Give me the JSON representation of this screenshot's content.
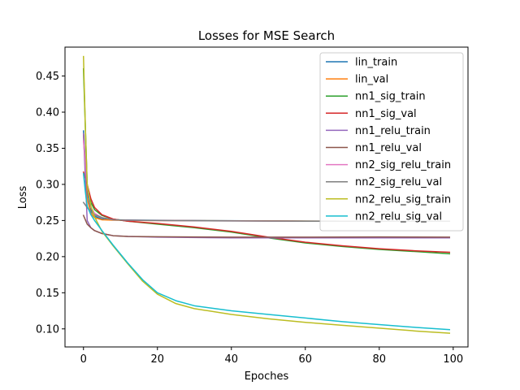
{
  "chart_data": {
    "type": "line",
    "title": "Losses for MSE Search",
    "xlabel": "Epoches",
    "ylabel": "Loss",
    "xlim": [
      -5,
      104
    ],
    "ylim": [
      0.075,
      0.49
    ],
    "xticks": [
      0,
      20,
      40,
      60,
      80,
      100
    ],
    "yticks": [
      0.1,
      0.15,
      0.2,
      0.25,
      0.3,
      0.35,
      0.4,
      0.45
    ],
    "ytick_labels": [
      "0.10",
      "0.15",
      "0.20",
      "0.25",
      "0.30",
      "0.35",
      "0.40",
      "0.45"
    ],
    "grid": false,
    "legend_position": "upper right",
    "series": [
      {
        "name": "lin_train",
        "color": "#1f77b4",
        "x": [
          0,
          0.5,
          1,
          2,
          3,
          5,
          8,
          15,
          30,
          50,
          70,
          99
        ],
        "y": [
          0.374,
          0.33,
          0.29,
          0.265,
          0.256,
          0.252,
          0.251,
          0.2505,
          0.25,
          0.2495,
          0.249,
          0.249
        ]
      },
      {
        "name": "lin_val",
        "color": "#ff7f0e",
        "x": [
          0,
          0.5,
          1,
          2,
          3,
          5,
          8,
          15,
          30,
          50,
          70,
          99
        ],
        "y": [
          0.37,
          0.32,
          0.28,
          0.26,
          0.254,
          0.251,
          0.2505,
          0.25,
          0.2498,
          0.2495,
          0.249,
          0.249
        ]
      },
      {
        "name": "nn1_sig_train",
        "color": "#2ca02c",
        "x": [
          0,
          1,
          2,
          3,
          5,
          8,
          12,
          20,
          30,
          40,
          50,
          60,
          70,
          80,
          90,
          99
        ],
        "y": [
          0.46,
          0.3,
          0.275,
          0.265,
          0.257,
          0.252,
          0.249,
          0.245,
          0.24,
          0.234,
          0.226,
          0.219,
          0.214,
          0.21,
          0.207,
          0.204
        ]
      },
      {
        "name": "nn1_sig_val",
        "color": "#d62728",
        "x": [
          0,
          1,
          2,
          3,
          5,
          8,
          12,
          20,
          30,
          40,
          50,
          60,
          70,
          80,
          90,
          99
        ],
        "y": [
          0.317,
          0.3,
          0.28,
          0.268,
          0.258,
          0.252,
          0.249,
          0.246,
          0.241,
          0.235,
          0.227,
          0.22,
          0.215,
          0.211,
          0.208,
          0.206
        ]
      },
      {
        "name": "nn1_relu_train",
        "color": "#9467bd",
        "x": [
          0,
          1,
          2,
          3,
          5,
          8,
          12,
          20,
          40,
          60,
          80,
          99
        ],
        "y": [
          0.37,
          0.25,
          0.24,
          0.236,
          0.232,
          0.229,
          0.228,
          0.227,
          0.226,
          0.226,
          0.226,
          0.226
        ]
      },
      {
        "name": "nn1_relu_val",
        "color": "#8c564b",
        "x": [
          0,
          1,
          2,
          3,
          5,
          8,
          12,
          20,
          40,
          60,
          80,
          99
        ],
        "y": [
          0.257,
          0.245,
          0.24,
          0.236,
          0.232,
          0.229,
          0.228,
          0.2275,
          0.227,
          0.227,
          0.2272,
          0.227
        ]
      },
      {
        "name": "nn2_sig_relu_train",
        "color": "#e377c2",
        "x": [
          0,
          0.5,
          1,
          2,
          3,
          5,
          8,
          12,
          20,
          40,
          60,
          80,
          99
        ],
        "y": [
          0.36,
          0.33,
          0.3,
          0.268,
          0.26,
          0.254,
          0.251,
          0.2505,
          0.25,
          0.2495,
          0.249,
          0.249,
          0.249
        ]
      },
      {
        "name": "nn2_sig_relu_val",
        "color": "#7f7f7f",
        "x": [
          0,
          1,
          2,
          3,
          5,
          8,
          12,
          20,
          40,
          60,
          80,
          99
        ],
        "y": [
          0.275,
          0.268,
          0.262,
          0.258,
          0.254,
          0.251,
          0.2505,
          0.25,
          0.2495,
          0.249,
          0.249,
          0.249
        ]
      },
      {
        "name": "nn2_relu_sig_train",
        "color": "#bcbd22",
        "x": [
          0,
          0.5,
          1,
          2,
          3,
          5,
          8,
          12,
          16,
          20,
          25,
          30,
          40,
          50,
          60,
          70,
          80,
          90,
          99
        ],
        "y": [
          0.477,
          0.38,
          0.3,
          0.27,
          0.255,
          0.235,
          0.215,
          0.19,
          0.166,
          0.148,
          0.135,
          0.128,
          0.12,
          0.114,
          0.109,
          0.105,
          0.101,
          0.097,
          0.094
        ]
      },
      {
        "name": "nn2_relu_sig_val",
        "color": "#17becf",
        "x": [
          0,
          0.5,
          1,
          2,
          3,
          5,
          8,
          12,
          16,
          20,
          25,
          30,
          40,
          50,
          60,
          70,
          80,
          90,
          99
        ],
        "y": [
          0.315,
          0.29,
          0.27,
          0.258,
          0.25,
          0.236,
          0.216,
          0.191,
          0.168,
          0.15,
          0.139,
          0.132,
          0.125,
          0.12,
          0.115,
          0.11,
          0.106,
          0.102,
          0.099
        ]
      }
    ]
  }
}
